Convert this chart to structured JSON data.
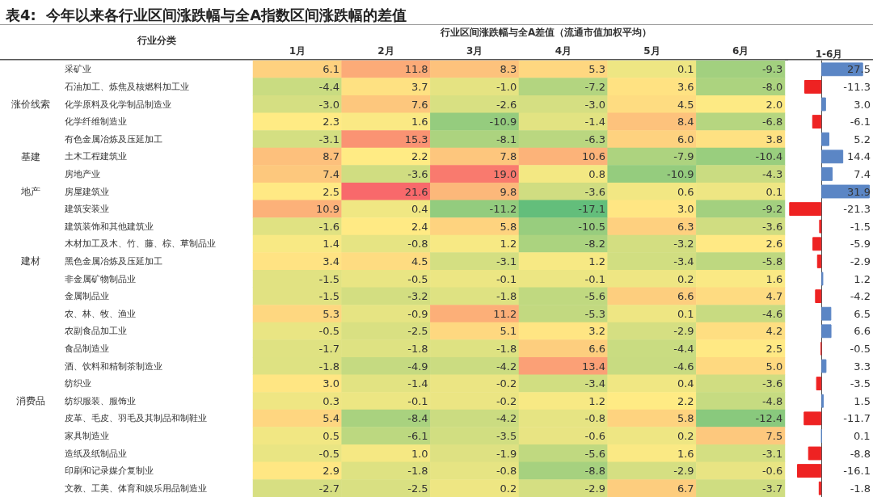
{
  "chart_data": [
    {
      "type": "heatmap",
      "title": "表4:  今年以来各行业区间涨跌幅与全A指数区间涨跌幅的差值",
      "subtitle": "行业区间涨跌幅与全A差值（流通市值加权平均）",
      "ylabel": "行业分类",
      "categories": [
        "1月",
        "2月",
        "3月",
        "4月",
        "5月",
        "6月"
      ],
      "y_categories": [
        "采矿业",
        "石油加工、炼焦及核燃料加工业",
        "化学原料及化学制品制造业",
        "化学纤维制造业",
        "有色金属冶炼及压延加工",
        "土木工程建筑业",
        "房地产业",
        "房屋建筑业",
        "建筑安装业",
        "建筑装饰和其他建筑业",
        "木材加工及木、竹、藤、棕、草制品业",
        "黑色金属冶炼及压延加工",
        "非金属矿物制品业",
        "金属制品业",
        "农、林、牧、渔业",
        "农副食品加工业",
        "食品制造业",
        "酒、饮料和精制茶制造业",
        "纺织业",
        "纺织服装、服饰业",
        "皮革、毛皮、羽毛及其制品和制鞋业",
        "家具制造业",
        "造纸及纸制品业",
        "印刷和记录媒介复制业",
        "文教、工美、体育和娱乐用品制造业"
      ],
      "y2_categories": [
        null,
        null,
        "涨价线索",
        null,
        null,
        "基建",
        null,
        "地产",
        null,
        null,
        null,
        "建材",
        null,
        null,
        null,
        null,
        null,
        null,
        null,
        "消费品",
        null,
        null,
        null,
        null,
        null
      ],
      "cells": [
        [
          6.1,
          11.8,
          8.3,
          5.3,
          0.1,
          -9.3
        ],
        [
          -4.4,
          3.7,
          -1.0,
          -7.2,
          3.6,
          -8.0
        ],
        [
          -3.0,
          7.6,
          -2.6,
          -3.0,
          4.5,
          2.0
        ],
        [
          2.3,
          1.6,
          -10.9,
          -1.4,
          8.4,
          -6.8
        ],
        [
          -3.1,
          15.3,
          -8.1,
          -6.3,
          6.0,
          3.8
        ],
        [
          8.7,
          2.2,
          7.8,
          10.6,
          -7.9,
          -10.4
        ],
        [
          7.4,
          -3.6,
          19.0,
          0.8,
          -10.9,
          -4.3
        ],
        [
          2.5,
          21.6,
          9.8,
          -3.6,
          0.6,
          0.1
        ],
        [
          10.9,
          0.4,
          -11.2,
          -17.1,
          3.0,
          -9.2
        ],
        [
          -1.6,
          2.4,
          5.8,
          -10.5,
          6.3,
          -3.6
        ],
        [
          1.4,
          -0.8,
          1.2,
          -8.2,
          -3.2,
          2.6
        ],
        [
          3.4,
          4.5,
          -3.1,
          1.2,
          -3.4,
          -5.8
        ],
        [
          -1.5,
          -0.5,
          -0.1,
          -0.1,
          0.2,
          1.6
        ],
        [
          -1.5,
          -3.2,
          -1.8,
          -5.6,
          6.6,
          4.7
        ],
        [
          5.3,
          -0.9,
          11.2,
          -5.3,
          0.1,
          -4.6
        ],
        [
          -0.5,
          -2.5,
          5.1,
          3.2,
          -2.9,
          4.2
        ],
        [
          -1.7,
          -1.8,
          -1.8,
          6.6,
          -4.4,
          2.5
        ],
        [
          -1.8,
          -4.9,
          -4.2,
          13.4,
          -4.6,
          5.0
        ],
        [
          3.0,
          -1.4,
          -0.2,
          -3.4,
          0.4,
          -3.6
        ],
        [
          0.3,
          -0.1,
          -0.2,
          1.2,
          2.2,
          -4.8
        ],
        [
          5.4,
          -8.4,
          -4.2,
          -0.8,
          5.8,
          -12.4
        ],
        [
          0.5,
          -6.1,
          -3.5,
          -0.6,
          0.2,
          7.5
        ],
        [
          -0.5,
          1.0,
          -1.9,
          -5.6,
          1.6,
          -3.1
        ],
        [
          2.9,
          -1.8,
          -0.8,
          -8.8,
          -2.9,
          -0.6
        ],
        [
          -2.7,
          -2.5,
          0.2,
          -2.9,
          6.7,
          -3.7
        ]
      ],
      "cell_labels": [
        [
          "6.1",
          "11.8",
          "8.3",
          "5.3",
          "0.1",
          "-9.3"
        ],
        [
          "-4.4",
          "3.7",
          "-1.0",
          "-7.2",
          "3.6",
          "-8.0"
        ],
        [
          "-3.0",
          "7.6",
          "-2.6",
          "-3.0",
          "4.5",
          "2.0"
        ],
        [
          "2.3",
          "1.6",
          "-10.9",
          "-1.4",
          "8.4",
          "-6.8"
        ],
        [
          "-3.1",
          "15.3",
          "-8.1",
          "-6.3",
          "6.0",
          "3.8"
        ],
        [
          "8.7",
          "2.2",
          "7.8",
          "10.6",
          "-7.9",
          "-10.4"
        ],
        [
          "7.4",
          "-3.6",
          "19.0",
          "0.8",
          "-10.9",
          "-4.3"
        ],
        [
          "2.5",
          "21.6",
          "9.8",
          "-3.6",
          "0.6",
          "0.1"
        ],
        [
          "10.9",
          "0.4",
          "-11.2",
          "-17.1",
          "3.0",
          "-9.2"
        ],
        [
          "-1.6",
          "2.4",
          "5.8",
          "-10.5",
          "6.3",
          "-3.6"
        ],
        [
          "1.4",
          "-0.8",
          "1.2",
          "-8.2",
          "-3.2",
          "2.6"
        ],
        [
          "3.4",
          "4.5",
          "-3.1",
          "1.2",
          "-3.4",
          "-5.8"
        ],
        [
          "-1.5",
          "-0.5",
          "-0.1",
          "-0.1",
          "0.2",
          "1.6"
        ],
        [
          "-1.5",
          "-3.2",
          "-1.8",
          "-5.6",
          "6.6",
          "4.7"
        ],
        [
          "5.3",
          "-0.9",
          "11.2",
          "-5.3",
          "0.1",
          "-4.6"
        ],
        [
          "-0.5",
          "-2.5",
          "5.1",
          "3.2",
          "-2.9",
          "4.2"
        ],
        [
          "-1.7",
          "-1.8",
          "-1.8",
          "6.6",
          "-4.4",
          "2.5"
        ],
        [
          "-1.8",
          "-4.9",
          "-4.2",
          "13.4",
          "-4.6",
          "5.0"
        ],
        [
          "3.0",
          "-1.4",
          "-0.2",
          "-3.4",
          "0.4",
          "-3.6"
        ],
        [
          "0.3",
          "-0.1",
          "-0.2",
          "1.2",
          "2.2",
          "-4.8"
        ],
        [
          "5.4",
          "-8.4",
          "-4.2",
          "-0.8",
          "5.8",
          "-12.4"
        ],
        [
          "0.5",
          "-6.1",
          "-3.5",
          "-0.6",
          "0.2",
          "7.5"
        ],
        [
          "-0.5",
          "1.0",
          "-1.9",
          "-5.6",
          "1.6",
          "-3.1"
        ],
        [
          "2.9",
          "-1.8",
          "-0.8",
          "-8.8",
          "-2.9",
          "-0.6"
        ],
        [
          "-2.7",
          "-2.5",
          "0.2",
          "-2.9",
          "6.7",
          "-3.7"
        ]
      ],
      "data_labels": true
    },
    {
      "type": "bar",
      "orientation": "horizontal",
      "title": "1-6月",
      "categories": [
        null,
        null,
        null,
        null,
        null,
        null,
        null,
        null,
        null,
        null,
        null,
        null,
        null,
        null,
        null,
        null,
        null,
        null,
        null,
        null,
        null,
        null,
        null,
        null,
        null
      ],
      "value_labels": [
        "27.5",
        "-11.3",
        "3.0",
        "-6.1",
        "5.2",
        "14.4",
        "7.4",
        "31.9",
        "-21.3",
        "-1.5",
        "-5.9",
        "-2.9",
        "1.2",
        "-4.2",
        "6.5",
        "6.6",
        "-0.5",
        "3.3",
        "-3.5",
        "1.5",
        "-11.7",
        "0.1",
        "-8.8",
        "-16.1",
        "-1.8"
      ],
      "values": [
        27.5,
        -11.3,
        3.0,
        -6.1,
        5.2,
        14.4,
        7.4,
        31.9,
        -21.3,
        -1.5,
        -5.9,
        -2.9,
        1.2,
        -4.2,
        6.5,
        6.6,
        -0.5,
        3.3,
        -3.5,
        1.5,
        -11.7,
        0.1,
        -8.8,
        -16.1,
        -1.8
      ],
      "colors": [
        "#5b86c5",
        "#ee2222",
        "#5b86c5",
        "#ee2222",
        "#5b86c5",
        "#5b86c5",
        "#5b86c5",
        "#5b86c5",
        "#ee2222",
        "#ee2222",
        "#ee2222",
        "#ee2222",
        "#5b86c5",
        "#ee2222",
        "#5b86c5",
        "#5b86c5",
        "#ee2222",
        "#5b86c5",
        "#ee2222",
        "#5b86c5",
        "#ee2222",
        "#5b86c5",
        "#ee2222",
        "#ee2222",
        "#ee2222"
      ],
      "xlim": [
        -22,
        33
      ]
    }
  ]
}
